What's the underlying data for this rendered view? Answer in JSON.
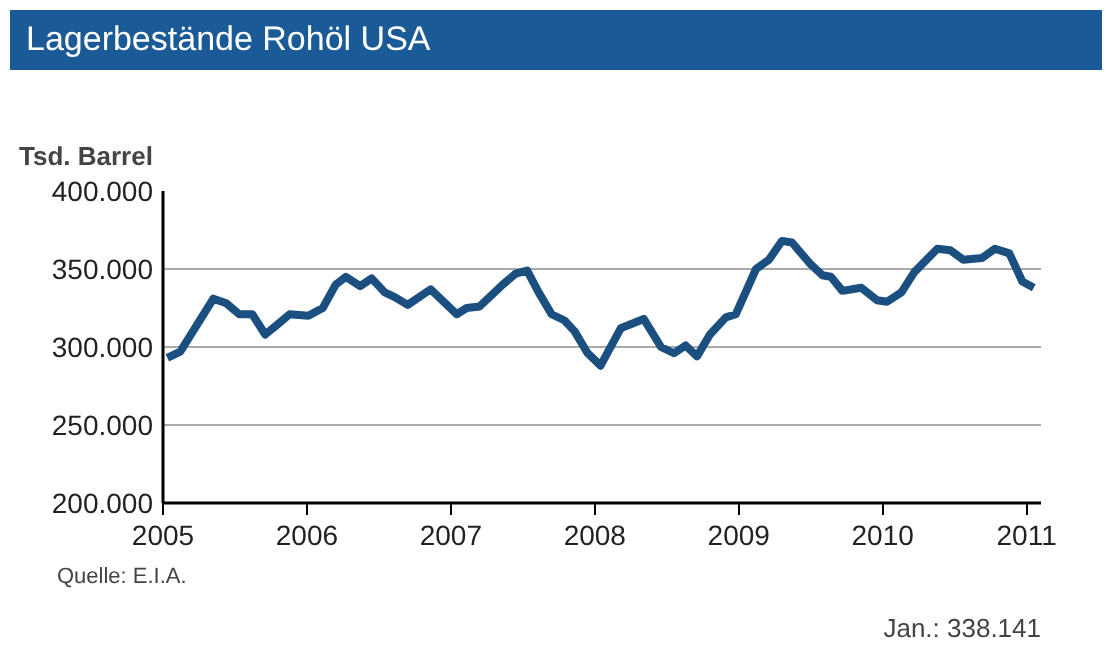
{
  "chart_data": {
    "type": "line",
    "title": "Lagerbestände Rohöl USA",
    "ylabel": "Tsd. Barrel",
    "x": [
      2005.03,
      2005.12,
      2005.35,
      2005.44,
      2005.53,
      2005.62,
      2005.71,
      2005.79,
      2005.88,
      2006.01,
      2006.11,
      2006.2,
      2006.27,
      2006.37,
      2006.45,
      2006.54,
      2006.61,
      2006.7,
      2006.86,
      2007.04,
      2007.11,
      2007.2,
      2007.36,
      2007.45,
      2007.53,
      2007.61,
      2007.7,
      2007.79,
      2007.86,
      2007.95,
      2008.04,
      2008.18,
      2008.34,
      2008.46,
      2008.55,
      2008.63,
      2008.71,
      2008.8,
      2008.91,
      2008.98,
      2009.12,
      2009.21,
      2009.3,
      2009.37,
      2009.49,
      2009.58,
      2009.64,
      2009.72,
      2009.85,
      2009.96,
      2010.03,
      2010.13,
      2010.22,
      2010.38,
      2010.47,
      2010.56,
      2010.69,
      2010.78,
      2010.88,
      2010.97,
      2011.05
    ],
    "series": [
      {
        "color": "#1b4f80",
        "values": [
          293000,
          297000,
          331000,
          328000,
          321000,
          321000,
          308000,
          314000,
          321000,
          320000,
          325000,
          340000,
          345000,
          339000,
          344000,
          335000,
          332000,
          327000,
          337000,
          321000,
          325000,
          326000,
          340000,
          347000,
          349000,
          335000,
          321000,
          317000,
          310000,
          296000,
          288000,
          312000,
          318000,
          300000,
          296000,
          301000,
          294000,
          308000,
          319000,
          321000,
          350000,
          356000,
          368000,
          367000,
          354000,
          346000,
          345000,
          336000,
          338000,
          330000,
          329000,
          335000,
          348000,
          363000,
          362000,
          356000,
          357000,
          363000,
          360000,
          342000,
          338000
        ]
      }
    ],
    "xlim": [
      2005,
      2011.1
    ],
    "xticks": [
      2005,
      2006,
      2007,
      2008,
      2009,
      2010,
      2011
    ],
    "ylim": [
      200000,
      400000
    ],
    "yticks": [
      {
        "value": 200000,
        "label": "200.000"
      },
      {
        "value": 250000,
        "label": "250.000"
      },
      {
        "value": 300000,
        "label": "300.000"
      },
      {
        "value": 350000,
        "label": "350.000"
      },
      {
        "value": 400000,
        "label": "400.000"
      }
    ],
    "grid": "y",
    "marker": "none",
    "line_style": "solid",
    "annotations": [
      "Quelle: E.I.A.",
      "Jan.: 338.141"
    ]
  }
}
